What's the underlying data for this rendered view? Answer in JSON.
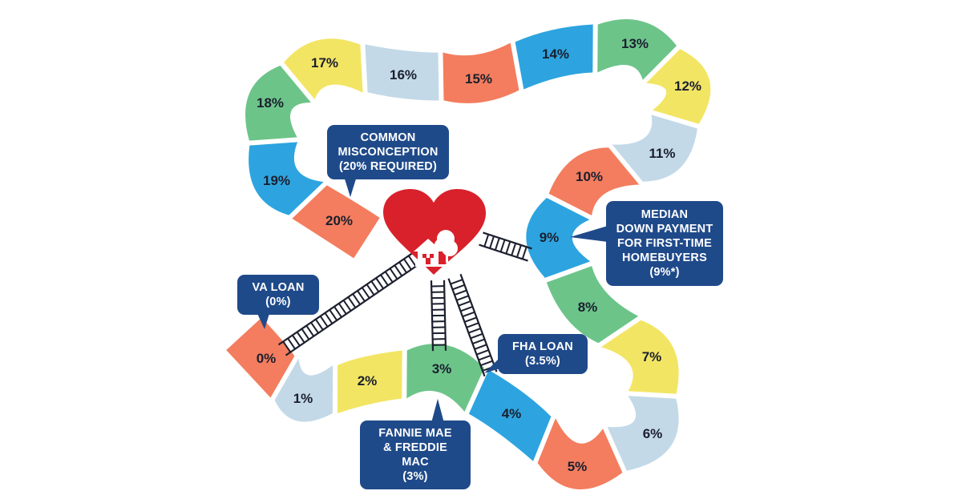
{
  "colors": {
    "green": "#6cc489",
    "yellow": "#f3e564",
    "light_blue": "#c3d9e8",
    "salmon": "#f37d5e",
    "blue": "#2da4df",
    "heart": "#d9212b",
    "callout": "#1f4a8a",
    "ladder": "#1b1f2e"
  },
  "tiles": [
    {
      "label": "0%",
      "color": "salmon"
    },
    {
      "label": "1%",
      "color": "light_blue"
    },
    {
      "label": "2%",
      "color": "yellow"
    },
    {
      "label": "3%",
      "color": "green"
    },
    {
      "label": "4%",
      "color": "blue"
    },
    {
      "label": "5%",
      "color": "salmon"
    },
    {
      "label": "6%",
      "color": "light_blue"
    },
    {
      "label": "7%",
      "color": "yellow"
    },
    {
      "label": "8%",
      "color": "green"
    },
    {
      "label": "9%",
      "color": "blue"
    },
    {
      "label": "10%",
      "color": "salmon"
    },
    {
      "label": "11%",
      "color": "light_blue"
    },
    {
      "label": "12%",
      "color": "yellow"
    },
    {
      "label": "13%",
      "color": "green"
    },
    {
      "label": "14%",
      "color": "blue"
    },
    {
      "label": "15%",
      "color": "salmon"
    },
    {
      "label": "16%",
      "color": "light_blue"
    },
    {
      "label": "17%",
      "color": "yellow"
    },
    {
      "label": "18%",
      "color": "green"
    },
    {
      "label": "19%",
      "color": "blue"
    },
    {
      "label": "20%",
      "color": "salmon"
    }
  ],
  "center_icon": "heart-house-icon",
  "callouts": {
    "common": {
      "lines": [
        "COMMON",
        "MISCONCEPTION",
        "(20% REQUIRED)"
      ]
    },
    "va": {
      "lines": [
        "VA LOAN",
        "(0%)"
      ]
    },
    "fannie": {
      "lines": [
        "FANNIE MAE",
        "& FREDDIE MAC",
        "(3%)"
      ]
    },
    "fha": {
      "lines": [
        "FHA LOAN",
        "(3.5%)"
      ]
    },
    "median": {
      "lines": [
        "MEDIAN",
        "DOWN PAYMENT",
        "FOR FIRST-TIME",
        "HOMEBUYERS",
        "(9%*)"
      ]
    }
  }
}
